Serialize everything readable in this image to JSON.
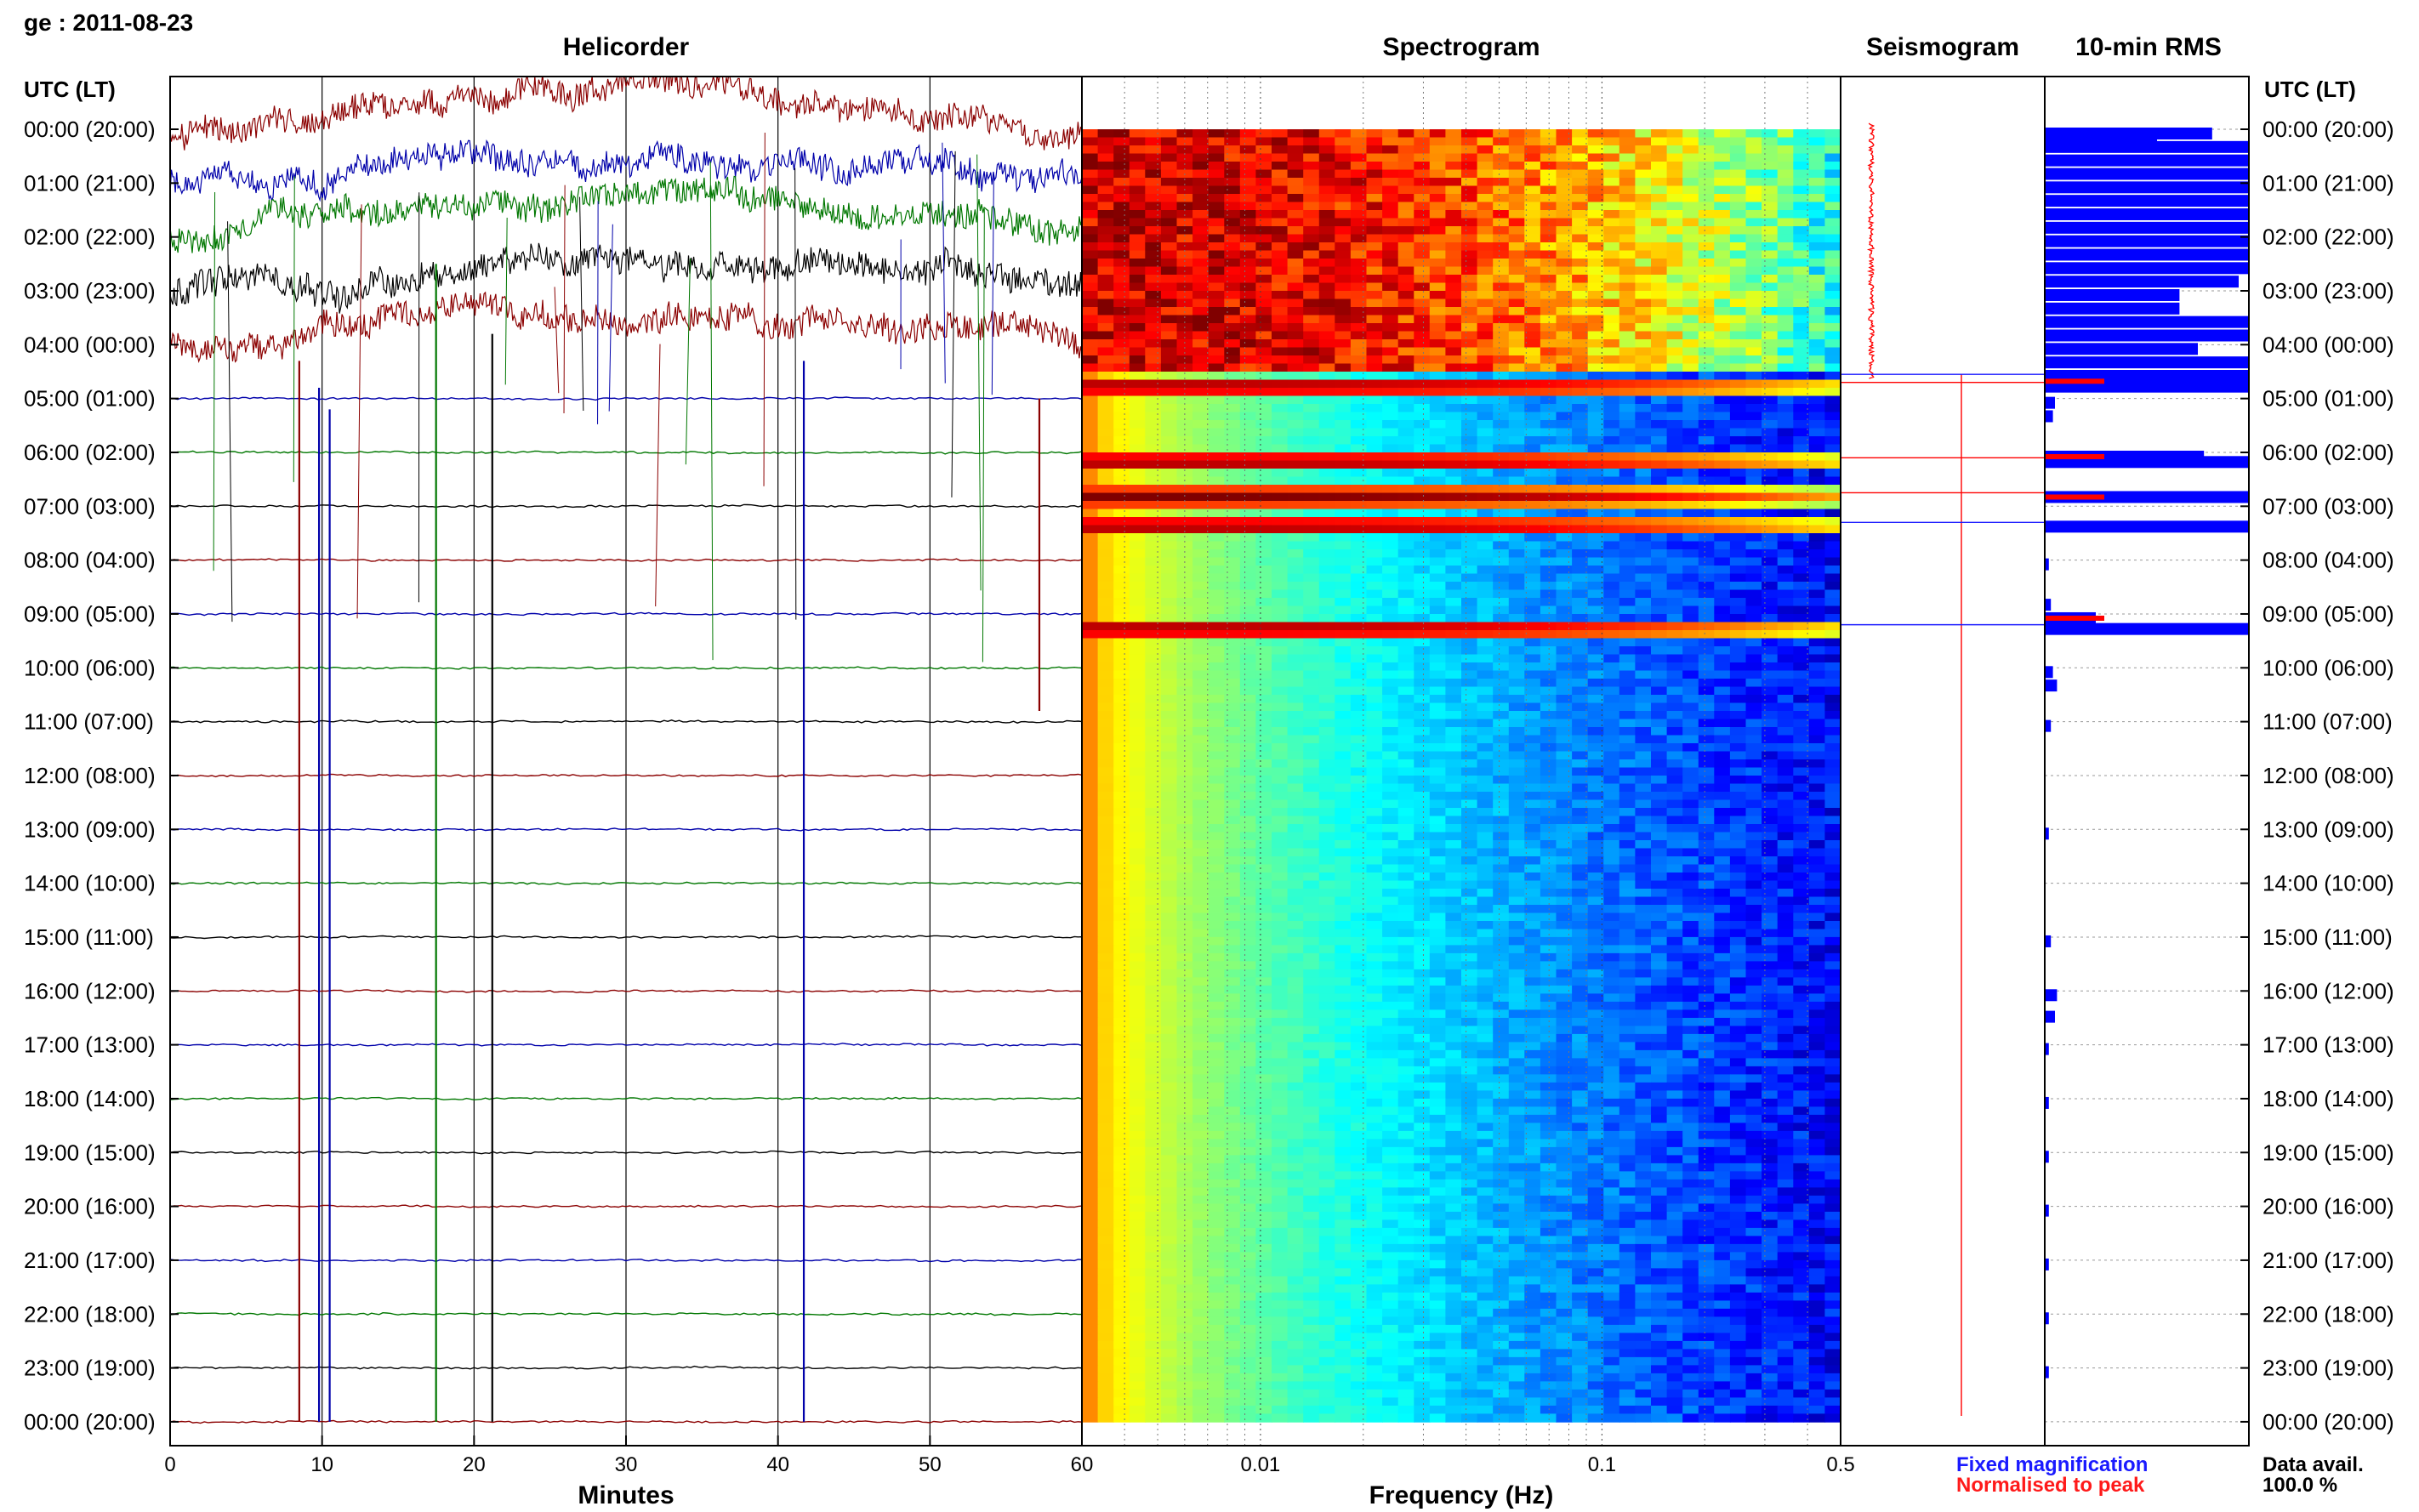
{
  "header": {
    "station_date": "ge : 2011-08-23"
  },
  "panels": {
    "helicorder": "Helicorder",
    "spectrogram": "Spectrogram",
    "seismogram": "Seismogram",
    "rms": "10-min RMS"
  },
  "time_axis_header": "UTC (LT)",
  "time_labels": [
    "00:00 (20:00)",
    "01:00 (21:00)",
    "02:00 (22:00)",
    "03:00 (23:00)",
    "04:00 (00:00)",
    "05:00 (01:00)",
    "06:00 (02:00)",
    "07:00 (03:00)",
    "08:00 (04:00)",
    "09:00 (05:00)",
    "10:00 (06:00)",
    "11:00 (07:00)",
    "12:00 (08:00)",
    "13:00 (09:00)",
    "14:00 (10:00)",
    "15:00 (11:00)",
    "16:00 (12:00)",
    "17:00 (13:00)",
    "18:00 (14:00)",
    "19:00 (15:00)",
    "20:00 (16:00)",
    "21:00 (17:00)",
    "22:00 (18:00)",
    "23:00 (19:00)",
    "00:00 (20:00)"
  ],
  "helicorder_x": {
    "label": "Minutes",
    "ticks": [
      "0",
      "10",
      "20",
      "30",
      "40",
      "50",
      "60"
    ]
  },
  "spectrogram_x": {
    "label": "Frequency (Hz)",
    "ticks": [
      "0.01",
      "0.1",
      "0.5"
    ]
  },
  "legend": {
    "fixed": "Fixed magnification",
    "normalised": "Normalised to peak",
    "fixed_color": "#1a1aff",
    "normalised_color": "#ff1a1a"
  },
  "data_avail": {
    "label": "Data avail.",
    "value": "100.0 %"
  },
  "colors": {
    "trace_cycle": [
      "#8b0000",
      "#0000aa",
      "#007700",
      "#000000"
    ],
    "rms_bar": "#0000ff",
    "rms_peak": "#ff0000"
  },
  "chart_data": [
    {
      "type": "line",
      "title": "Helicorder",
      "xlabel": "Minutes",
      "xlim": [
        0,
        60
      ],
      "ylabel": "UTC (LT)",
      "row_count": 25,
      "traces": "one trace per hour, 00:00 to 24:00 UTC; colours cycle dark red, blue, green, black",
      "large_signal_hours": [
        0,
        1,
        2,
        3,
        4
      ],
      "notable_deflections_minutes": [
        8,
        10,
        17,
        21,
        42,
        57
      ]
    },
    {
      "type": "heatmap",
      "title": "Spectrogram",
      "xlabel": "Frequency (Hz)",
      "x_scale": "log",
      "xlim": [
        0.003,
        0.5
      ],
      "colormap": "jet",
      "high_energy_hours": [
        0,
        1,
        2,
        3,
        4
      ],
      "event_bands_hours": [
        4.7,
        6.1,
        6.75,
        7.3,
        9.2
      ]
    },
    {
      "type": "bar",
      "title": "10-min RMS",
      "hours": [
        0.0,
        0.1,
        0.25,
        0.5,
        0.75,
        1.0,
        1.25,
        1.5,
        1.75,
        2.0,
        2.25,
        2.5,
        2.75,
        3.0,
        3.25,
        3.5,
        3.75,
        4.0,
        4.25,
        4.5,
        4.6,
        4.7,
        5.0,
        5.25,
        6.0,
        6.1,
        6.75,
        7.3,
        8.0,
        8.75,
        9.0,
        9.2,
        10.0,
        10.25,
        11.0,
        13.0,
        15.0,
        16.0,
        16.4,
        17.0,
        18.0,
        19.0,
        20.0,
        21.0,
        22.0,
        23.0
      ],
      "rms_relative": [
        0.82,
        0.55,
        1.0,
        1.0,
        1.0,
        1.0,
        1.0,
        1.0,
        1.0,
        1.0,
        1.0,
        1.0,
        0.95,
        0.66,
        0.66,
        1.0,
        1.0,
        0.75,
        1.0,
        1.0,
        0.28,
        1.0,
        0.05,
        0.04,
        0.78,
        1.0,
        1.0,
        1.0,
        0.02,
        0.03,
        0.25,
        1.0,
        0.04,
        0.06,
        0.03,
        0.02,
        0.03,
        0.06,
        0.05,
        0.02,
        0.02,
        0.02,
        0.02,
        0.02,
        0.02,
        0.02
      ],
      "peak_marked_hours": [
        4.6,
        6.0,
        6.75,
        9.0
      ]
    }
  ]
}
